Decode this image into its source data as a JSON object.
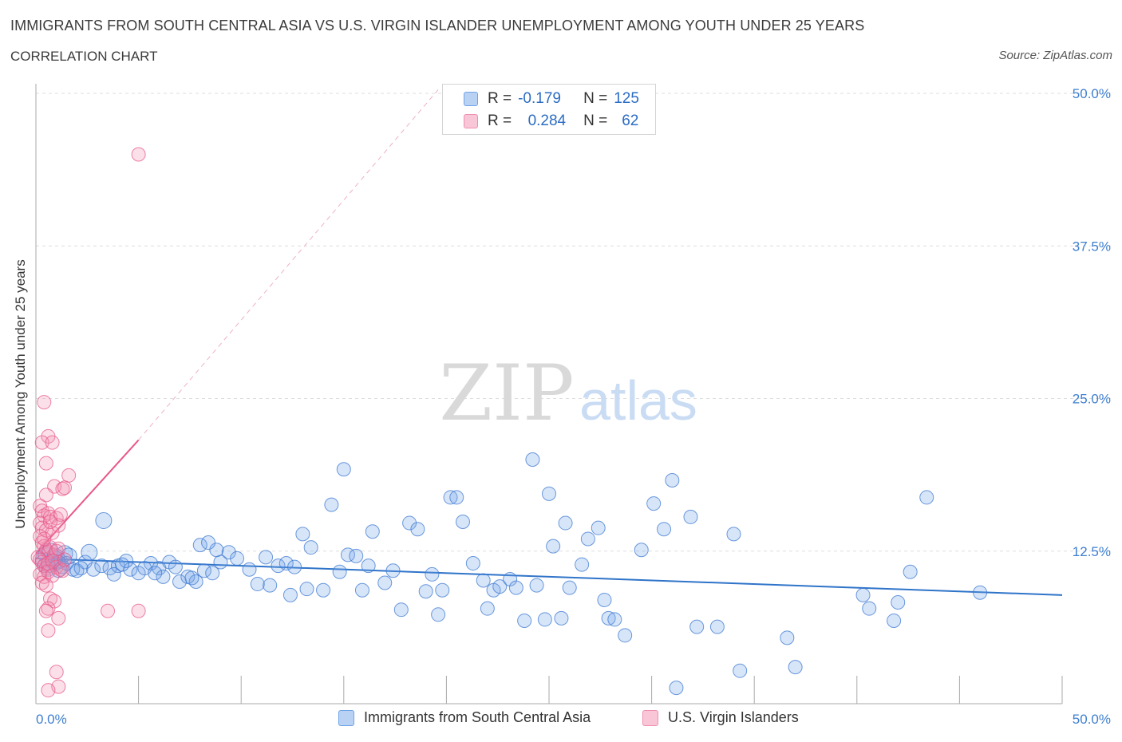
{
  "title": "IMMIGRANTS FROM SOUTH CENTRAL ASIA VS U.S. VIRGIN ISLANDER UNEMPLOYMENT AMONG YOUTH UNDER 25 YEARS",
  "subtitle": "CORRELATION CHART",
  "source": "Source: ZipAtlas.com",
  "watermark": {
    "zip": "ZIP",
    "atlas": "atlas"
  },
  "colors": {
    "blue": "#6fa3e6",
    "blue_line": "#2f74c9",
    "pink": "#ef8fb0",
    "pink_line": "#e8578a",
    "axis_text": "#3f7fd0",
    "grid": "#dddddd"
  },
  "stats": {
    "series1": {
      "r_label": "R =",
      "r_value": "-0.179",
      "n_label": "N =",
      "n_value": "125"
    },
    "series2": {
      "r_label": "R =",
      "r_value": "0.284",
      "n_label": "N =",
      "n_value": "62"
    }
  },
  "legend": {
    "series1": "Immigrants from South Central Asia",
    "series2": "U.S. Virgin Islanders"
  },
  "chart_data": {
    "type": "scatter",
    "title": "IMMIGRANTS FROM SOUTH CENTRAL ASIA VS U.S. VIRGIN ISLANDER UNEMPLOYMENT AMONG YOUTH UNDER 25 YEARS",
    "xlabel": "",
    "ylabel": "Unemployment Among Youth under 25 years",
    "xlim": [
      0,
      50
    ],
    "ylim": [
      0,
      50
    ],
    "x_tick_labels": [
      "0.0%",
      "50.0%"
    ],
    "y_ticks": [
      12.5,
      25,
      37.5,
      50
    ],
    "y_tick_labels": [
      "12.5%",
      "25.0%",
      "37.5%",
      "50.0%"
    ],
    "grid": true,
    "legend_position": "bottom",
    "series": [
      {
        "name": "Immigrants from South Central Asia",
        "color": "#6fa3e6",
        "trend": {
          "x": [
            0,
            50
          ],
          "y": [
            11.9,
            8.9
          ]
        },
        "points": [
          [
            0.3,
            11.8
          ],
          [
            0.4,
            11.3
          ],
          [
            0.5,
            12.2
          ],
          [
            0.6,
            11.0
          ],
          [
            0.7,
            12.5
          ],
          [
            0.8,
            11.6
          ],
          [
            0.9,
            11.4
          ],
          [
            1.0,
            12.0
          ],
          [
            1.1,
            10.9
          ],
          [
            1.2,
            11.7
          ],
          [
            1.3,
            11.2
          ],
          [
            1.4,
            12.3
          ],
          [
            1.5,
            11.5
          ],
          [
            0.9,
            11.9
          ],
          [
            1.6,
            12.1
          ],
          [
            1.8,
            11.0
          ],
          [
            2.0,
            10.9
          ],
          [
            2.4,
            11.6
          ],
          [
            2.8,
            11.0
          ],
          [
            3.2,
            11.3
          ],
          [
            3.6,
            11.1
          ],
          [
            4.0,
            11.3
          ],
          [
            4.6,
            11.0
          ],
          [
            5.0,
            10.7
          ],
          [
            5.6,
            11.5
          ],
          [
            6.0,
            11.1
          ],
          [
            6.5,
            11.6
          ],
          [
            7.0,
            10.0
          ],
          [
            7.4,
            10.4
          ],
          [
            7.8,
            10.0
          ],
          [
            8.2,
            10.9
          ],
          [
            8.6,
            10.7
          ],
          [
            9.0,
            11.6
          ],
          [
            9.4,
            12.4
          ],
          [
            9.8,
            11.9
          ],
          [
            2.6,
            12.4
          ],
          [
            3.3,
            15.0
          ],
          [
            4.4,
            11.7
          ],
          [
            5.3,
            11.1
          ],
          [
            6.8,
            11.2
          ],
          [
            8.0,
            13.0
          ],
          [
            8.8,
            12.6
          ],
          [
            10.4,
            11.0
          ],
          [
            10.8,
            9.8
          ],
          [
            11.4,
            9.7
          ],
          [
            11.8,
            11.3
          ],
          [
            12.2,
            11.5
          ],
          [
            12.6,
            11.2
          ],
          [
            13.0,
            13.9
          ],
          [
            13.4,
            12.8
          ],
          [
            12.4,
            8.9
          ],
          [
            13.2,
            9.4
          ],
          [
            14.0,
            9.3
          ],
          [
            14.4,
            16.3
          ],
          [
            14.8,
            10.8
          ],
          [
            15.2,
            12.2
          ],
          [
            15.6,
            12.1
          ],
          [
            15.9,
            9.3
          ],
          [
            16.2,
            11.3
          ],
          [
            16.4,
            14.1
          ],
          [
            17.0,
            9.9
          ],
          [
            17.4,
            10.9
          ],
          [
            17.8,
            7.7
          ],
          [
            18.2,
            14.8
          ],
          [
            18.6,
            14.3
          ],
          [
            19.0,
            9.2
          ],
          [
            19.3,
            10.6
          ],
          [
            19.6,
            7.3
          ],
          [
            19.8,
            9.3
          ],
          [
            20.2,
            16.9
          ],
          [
            20.5,
            16.9
          ],
          [
            20.8,
            14.9
          ],
          [
            21.3,
            11.5
          ],
          [
            21.8,
            10.1
          ],
          [
            22.0,
            7.8
          ],
          [
            22.3,
            9.3
          ],
          [
            22.6,
            9.6
          ],
          [
            23.1,
            10.2
          ],
          [
            23.4,
            9.5
          ],
          [
            23.8,
            6.8
          ],
          [
            24.2,
            20.0
          ],
          [
            24.4,
            9.7
          ],
          [
            24.8,
            6.9
          ],
          [
            25.0,
            17.2
          ],
          [
            25.2,
            12.9
          ],
          [
            25.6,
            7.0
          ],
          [
            25.8,
            14.8
          ],
          [
            26.0,
            9.5
          ],
          [
            26.6,
            11.4
          ],
          [
            26.9,
            13.5
          ],
          [
            27.4,
            14.4
          ],
          [
            27.7,
            8.5
          ],
          [
            27.9,
            7.0
          ],
          [
            28.2,
            6.9
          ],
          [
            28.7,
            5.6
          ],
          [
            29.5,
            12.6
          ],
          [
            30.1,
            16.4
          ],
          [
            30.6,
            14.3
          ],
          [
            31.0,
            18.3
          ],
          [
            31.2,
            1.3
          ],
          [
            32.2,
            6.3
          ],
          [
            31.9,
            15.3
          ],
          [
            33.2,
            6.3
          ],
          [
            34.0,
            13.9
          ],
          [
            34.3,
            2.7
          ],
          [
            36.6,
            5.4
          ],
          [
            37.0,
            3.0
          ],
          [
            40.3,
            8.9
          ],
          [
            40.6,
            7.8
          ],
          [
            41.8,
            6.8
          ],
          [
            42.0,
            8.3
          ],
          [
            42.6,
            10.8
          ],
          [
            43.4,
            16.9
          ],
          [
            46.0,
            9.1
          ],
          [
            15.0,
            19.2
          ],
          [
            11.2,
            12.0
          ],
          [
            8.4,
            13.2
          ],
          [
            4.2,
            11.4
          ],
          [
            6.2,
            10.4
          ],
          [
            2.2,
            11.1
          ],
          [
            1.1,
            11.6
          ],
          [
            0.6,
            11.3
          ],
          [
            3.8,
            10.6
          ],
          [
            5.8,
            10.7
          ],
          [
            7.6,
            10.3
          ]
        ]
      },
      {
        "name": "U.S. Virgin Islanders",
        "color": "#ef8fb0",
        "trend": {
          "x": [
            0,
            5.0
          ],
          "y": [
            12.3,
            21.6
          ]
        },
        "trend_extension": {
          "x": [
            5.0,
            19.6
          ],
          "y": [
            21.6,
            50.3
          ]
        },
        "points": [
          [
            5.0,
            45.0
          ],
          [
            0.4,
            24.7
          ],
          [
            0.6,
            21.9
          ],
          [
            0.3,
            21.4
          ],
          [
            0.8,
            21.4
          ],
          [
            0.5,
            19.7
          ],
          [
            1.6,
            18.7
          ],
          [
            0.9,
            17.8
          ],
          [
            1.3,
            17.6
          ],
          [
            1.4,
            17.7
          ],
          [
            0.5,
            17.1
          ],
          [
            0.2,
            16.2
          ],
          [
            0.3,
            15.8
          ],
          [
            0.4,
            15.4
          ],
          [
            0.6,
            15.6
          ],
          [
            0.7,
            15.3
          ],
          [
            1.0,
            15.2
          ],
          [
            1.2,
            15.5
          ],
          [
            0.2,
            14.8
          ],
          [
            0.3,
            14.4
          ],
          [
            0.5,
            14.2
          ],
          [
            0.8,
            14.0
          ],
          [
            1.1,
            14.6
          ],
          [
            0.2,
            13.7
          ],
          [
            0.3,
            13.2
          ],
          [
            0.4,
            12.9
          ],
          [
            0.5,
            12.6
          ],
          [
            0.6,
            12.4
          ],
          [
            0.7,
            12.8
          ],
          [
            0.9,
            12.2
          ],
          [
            1.0,
            12.5
          ],
          [
            1.1,
            12.7
          ],
          [
            0.1,
            12.0
          ],
          [
            0.2,
            11.8
          ],
          [
            0.3,
            11.6
          ],
          [
            0.4,
            11.3
          ],
          [
            0.5,
            11.1
          ],
          [
            0.6,
            11.5
          ],
          [
            0.8,
            11.7
          ],
          [
            1.0,
            11.2
          ],
          [
            1.2,
            11.0
          ],
          [
            1.3,
            10.9
          ],
          [
            0.2,
            10.6
          ],
          [
            0.4,
            10.4
          ],
          [
            0.6,
            10.8
          ],
          [
            0.8,
            10.5
          ],
          [
            1.4,
            11.8
          ],
          [
            0.3,
            9.9
          ],
          [
            0.5,
            9.7
          ],
          [
            0.7,
            8.6
          ],
          [
            0.9,
            8.4
          ],
          [
            3.5,
            7.6
          ],
          [
            5.0,
            7.6
          ],
          [
            0.6,
            7.8
          ],
          [
            0.5,
            7.6
          ],
          [
            1.1,
            7.0
          ],
          [
            0.6,
            6.0
          ],
          [
            1.0,
            2.6
          ],
          [
            1.1,
            1.4
          ],
          [
            0.6,
            1.1
          ],
          [
            0.4,
            13.5
          ],
          [
            0.7,
            14.9
          ]
        ]
      }
    ]
  }
}
